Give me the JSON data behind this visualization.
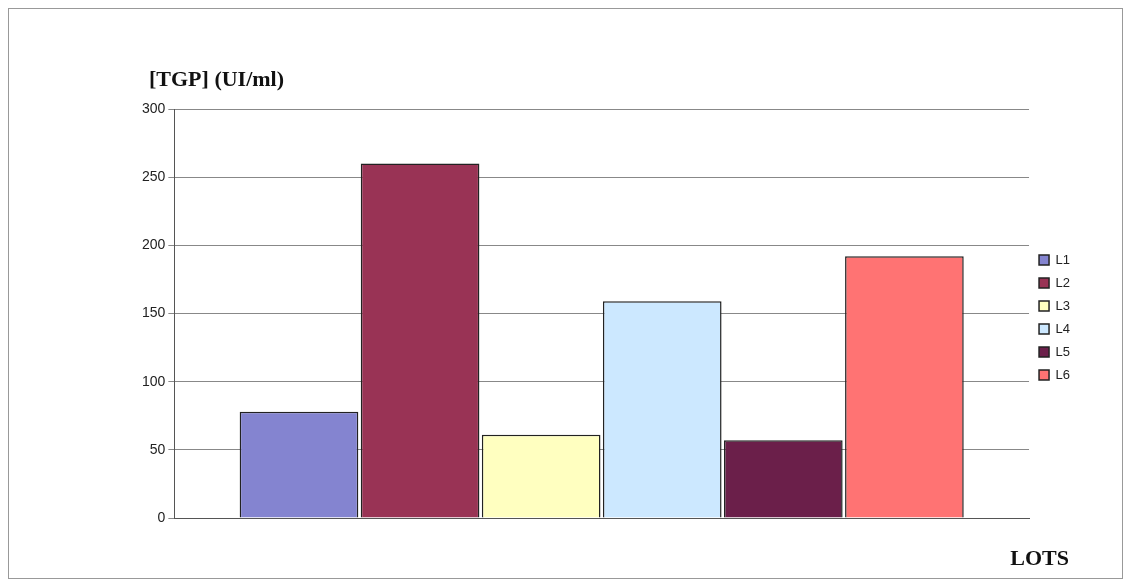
{
  "chart_data": {
    "type": "bar",
    "ylabel": "[TGP] (UI/ml)",
    "xlabel": "LOTS",
    "categories": [
      null
    ],
    "series": [
      {
        "name": "L1",
        "color": "#8484d0",
        "values": [
          78
        ]
      },
      {
        "name": "L2",
        "color": "#993355",
        "values": [
          260
        ]
      },
      {
        "name": "L3",
        "color": "#ffffc0",
        "values": [
          61
        ]
      },
      {
        "name": "L4",
        "color": "#cce8ff",
        "values": [
          159
        ]
      },
      {
        "name": "L5",
        "color": "#6b1f4a",
        "values": [
          57
        ]
      },
      {
        "name": "L6",
        "color": "#ff7373",
        "values": [
          192
        ]
      }
    ],
    "ylim": [
      0,
      300
    ],
    "yticks": [
      0,
      50,
      100,
      150,
      200,
      250,
      300
    ],
    "grid": "y",
    "legend": "right"
  }
}
